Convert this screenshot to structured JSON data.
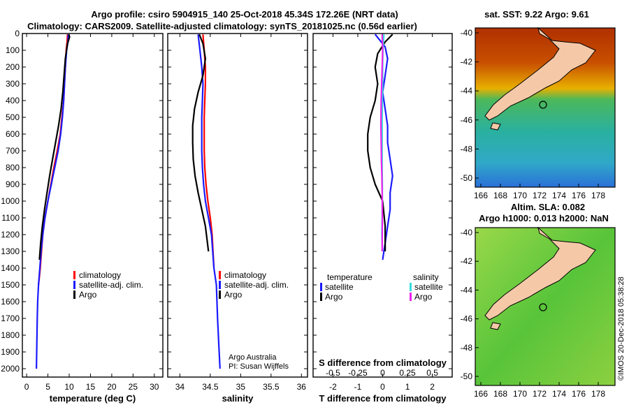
{
  "colors": {
    "climatology": "#ff0000",
    "satellite": "#1a1aff",
    "argo": "#000000",
    "s_satellite": "#33dddd",
    "s_argo": "#ee22ee",
    "land": "#f5c9a8"
  },
  "title": {
    "line1": "Argo profile: csiro 5904915_140 25-Oct-2018 45.34S 172.26E (NRT data)",
    "line2": "Climatology: CARS2009. Satellite-adjusted climatology: synTS_20181025.nc (0.56d earlier)"
  },
  "depth_axis": {
    "range": [
      0,
      2050
    ],
    "ticks": [
      0,
      100,
      200,
      300,
      400,
      500,
      600,
      700,
      800,
      900,
      1000,
      1100,
      1200,
      1300,
      1400,
      1500,
      1600,
      1700,
      1800,
      1900,
      2000
    ]
  },
  "chart_data": [
    {
      "type": "line",
      "name": "temperature",
      "xlabel": "temperature (deg C)",
      "xlim": [
        -1,
        32
      ],
      "xticks": [
        0,
        5,
        10,
        15,
        20,
        25,
        30
      ],
      "ylim": [
        0,
        2050
      ],
      "legend": [
        "climatology",
        "satellite-adj. clim.",
        "Argo"
      ],
      "series": [
        {
          "name": "climatology",
          "color_key": "climatology",
          "x": [
            9.6,
            9.5,
            9.3,
            9.1,
            8.9,
            8.7,
            8.3,
            7.9,
            7.2,
            6.4,
            5.7,
            5.0,
            4.3,
            3.8,
            3.5,
            3.2,
            3.0,
            2.8
          ],
          "y": [
            5,
            50,
            100,
            200,
            300,
            400,
            500,
            600,
            700,
            800,
            900,
            1000,
            1100,
            1200,
            1300,
            1400,
            1450,
            1500
          ]
        },
        {
          "name": "satellite-adj. clim.",
          "color_key": "satellite",
          "x": [
            9.8,
            9.7,
            9.4,
            9.1,
            8.9,
            8.7,
            8.4,
            8.0,
            7.4,
            6.6,
            5.8,
            5.0,
            4.3,
            3.8,
            3.4,
            3.1,
            2.8,
            2.6,
            2.5,
            2.4,
            2.3
          ],
          "y": [
            5,
            50,
            100,
            200,
            300,
            400,
            500,
            600,
            700,
            800,
            900,
            1000,
            1100,
            1200,
            1300,
            1400,
            1500,
            1600,
            1700,
            1850,
            2000
          ]
        },
        {
          "name": "Argo",
          "color_key": "argo",
          "x": [
            9.9,
            10.1,
            9.6,
            9.1,
            8.8,
            8.5,
            8.1,
            7.5,
            6.8,
            6.1,
            5.4,
            4.8,
            4.2,
            3.7,
            3.3,
            3.0
          ],
          "y": [
            5,
            20,
            60,
            150,
            250,
            350,
            450,
            550,
            650,
            750,
            850,
            950,
            1050,
            1150,
            1250,
            1350
          ]
        }
      ]
    },
    {
      "type": "line",
      "name": "salinity",
      "xlabel": "salinity",
      "xlim": [
        33.8,
        36.1
      ],
      "xticks": [
        34,
        34.5,
        35,
        35.5,
        36
      ],
      "ylim": [
        0,
        2050
      ],
      "legend": [
        "climatology",
        "satellite-adj. clim.",
        "Argo"
      ],
      "annotation": [
        "Argo Australia",
        "PI: Susan Wijffels"
      ],
      "series": [
        {
          "name": "climatology",
          "color_key": "climatology",
          "x": [
            34.38,
            34.4,
            34.42,
            34.42,
            34.41,
            34.4,
            34.4,
            34.4,
            34.41,
            34.43,
            34.46,
            34.5,
            34.53,
            34.56
          ],
          "y": [
            5,
            100,
            200,
            300,
            400,
            500,
            600,
            700,
            800,
            900,
            1000,
            1100,
            1200,
            1400
          ]
        },
        {
          "name": "satellite-adj. clim.",
          "color_key": "satellite",
          "x": [
            34.3,
            34.33,
            34.36,
            34.38,
            34.37,
            34.36,
            34.36,
            34.36,
            34.37,
            34.39,
            34.42,
            34.47,
            34.52,
            34.56,
            34.6,
            34.62,
            34.64,
            34.66
          ],
          "y": [
            5,
            100,
            200,
            300,
            400,
            500,
            600,
            700,
            800,
            900,
            1000,
            1100,
            1200,
            1400,
            1500,
            1700,
            1850,
            2000
          ]
        },
        {
          "name": "Argo",
          "color_key": "argo",
          "x": [
            34.32,
            34.38,
            34.42,
            34.38,
            34.3,
            34.24,
            34.21,
            34.21,
            34.22,
            34.25,
            34.3,
            34.36,
            34.42,
            34.47
          ],
          "y": [
            5,
            60,
            150,
            250,
            350,
            450,
            550,
            650,
            750,
            850,
            950,
            1050,
            1150,
            1300
          ]
        }
      ]
    },
    {
      "type": "line",
      "name": "difference",
      "xlabel": "T difference from climatology",
      "xlim": [
        -2.8,
        2.8
      ],
      "xticks": [
        -2,
        -1,
        0,
        1,
        2
      ],
      "x2label": "S difference from climatology",
      "x2ticks_labels": [
        "-0.5",
        "-0.25",
        "0",
        "0.25",
        "0.5"
      ],
      "ylim": [
        0,
        2050
      ],
      "legend_left_title": "temperature",
      "legend_right_title": "salinity",
      "legend_left": [
        "satellite",
        "Argo"
      ],
      "legend_right": [
        "satellite",
        "Argo"
      ],
      "series": [
        {
          "name": "T satellite",
          "color_key": "satellite",
          "x": [
            -0.3,
            0.1,
            0.2,
            0.1,
            0.0,
            0.1,
            0.2,
            0.2,
            0.3,
            0.4,
            0.3,
            0.3,
            0.2,
            0.1,
            0.0
          ],
          "y": [
            5,
            80,
            150,
            250,
            350,
            450,
            550,
            650,
            750,
            850,
            950,
            1050,
            1150,
            1250,
            1350
          ]
        },
        {
          "name": "T Argo",
          "color_key": "argo",
          "x": [
            0.4,
            0.1,
            -0.2,
            -0.3,
            -0.2,
            -0.3,
            -0.5,
            -0.6,
            -0.6,
            -0.5,
            -0.3,
            0.0,
            0.1,
            0.1
          ],
          "y": [
            5,
            50,
            120,
            200,
            300,
            400,
            500,
            600,
            700,
            800,
            900,
            1000,
            1150,
            1300
          ]
        },
        {
          "name": "S satellite",
          "color_key": "s_satellite",
          "x": [
            0.05,
            0.01,
            0.0,
            0.0,
            -0.01,
            -0.02,
            -0.02,
            -0.02,
            -0.02,
            -0.01,
            -0.01,
            -0.02,
            -0.03,
            -0.01
          ],
          "y": [
            5,
            100,
            200,
            300,
            400,
            500,
            600,
            700,
            800,
            900,
            1000,
            1100,
            1200,
            1300
          ]
        },
        {
          "name": "S Argo",
          "color_key": "s_argo",
          "x": [
            -0.02,
            0.0,
            -0.02,
            -0.04,
            -0.06,
            -0.07,
            -0.06,
            -0.05,
            -0.03,
            -0.02,
            -0.01,
            -0.02
          ],
          "y": [
            5,
            100,
            200,
            300,
            400,
            550,
            650,
            750,
            850,
            950,
            1100,
            1300
          ]
        }
      ]
    }
  ],
  "maps": {
    "top": {
      "title": "sat. SST: 9.22  Argo: 9.61",
      "lat_ticks": [
        "-40",
        "-42",
        "-44",
        "-46",
        "-48",
        "-50"
      ],
      "lon_ticks": [
        "166",
        "168",
        "170",
        "172",
        "174",
        "176",
        "178"
      ]
    },
    "bottom": {
      "title1": "Altim. SLA: 0.082",
      "title2": "Argo h1000: 0.013 h2000: NaN",
      "lat_ticks": [
        "-40",
        "-42",
        "-44",
        "-46",
        "-48",
        "-50"
      ],
      "lon_ticks": [
        "166",
        "168",
        "170",
        "172",
        "174",
        "176",
        "178"
      ]
    }
  },
  "watermark": "©IMOS 20-Dec-2018 05:38:28"
}
